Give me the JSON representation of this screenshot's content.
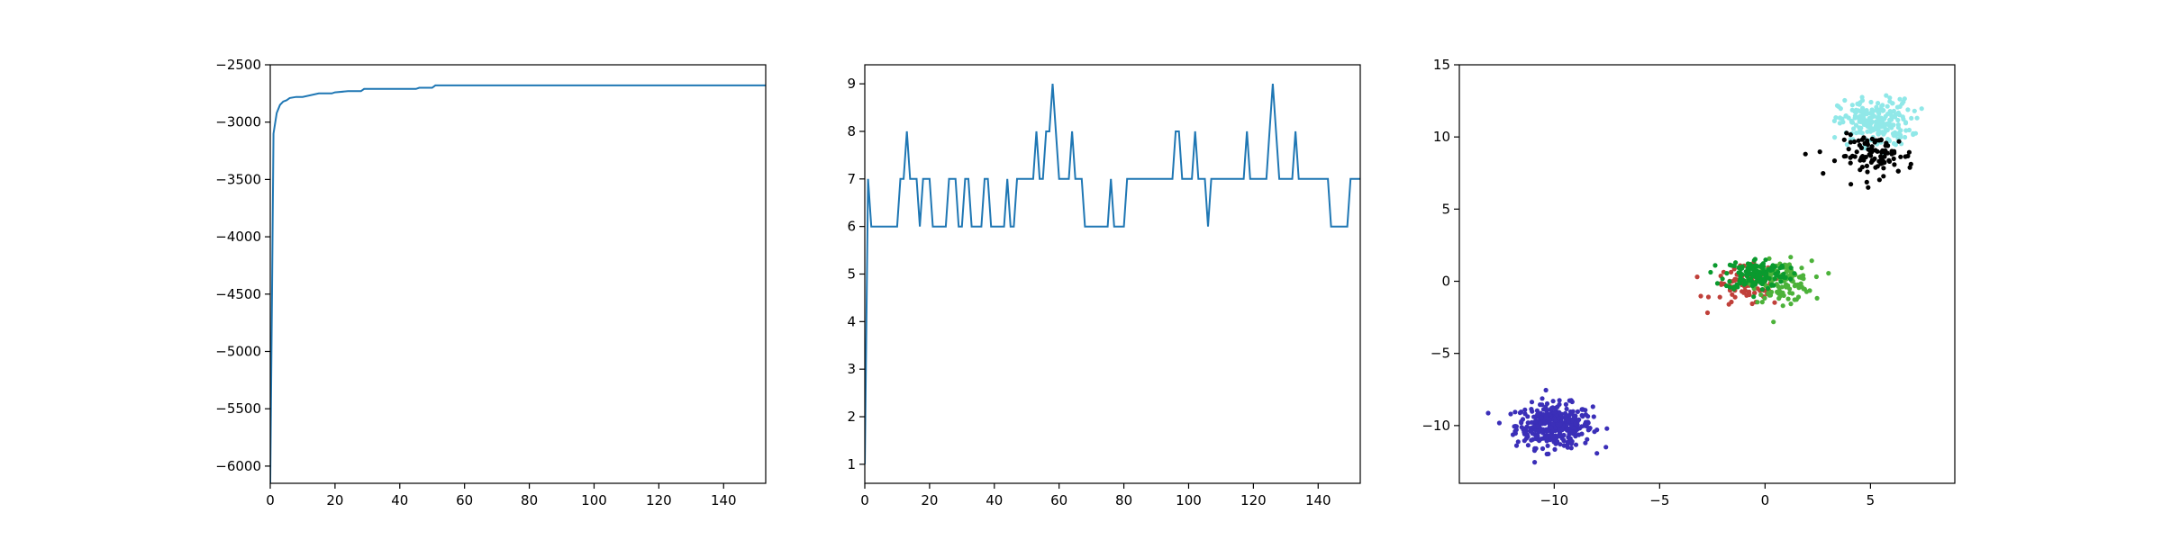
{
  "chart_data": [
    {
      "type": "line",
      "title": "",
      "xlabel": "",
      "ylabel": "",
      "xlim": [
        0,
        153
      ],
      "ylim": [
        -6150,
        -2500
      ],
      "xticks": [
        0,
        20,
        40,
        60,
        80,
        100,
        120,
        140
      ],
      "yticks": [
        -6000,
        -5500,
        -5000,
        -4500,
        -4000,
        -3500,
        -3000,
        -2500
      ],
      "grid": false,
      "series": [
        {
          "color": "#1f77b4",
          "x": [
            0,
            1,
            2,
            3,
            4,
            5,
            6,
            8,
            10,
            15,
            19,
            20,
            24,
            28,
            29,
            45,
            46,
            50,
            51,
            153
          ],
          "y": [
            -6150,
            -3100,
            -2920,
            -2850,
            -2820,
            -2810,
            -2790,
            -2780,
            -2780,
            -2750,
            -2750,
            -2740,
            -2730,
            -2730,
            -2710,
            -2710,
            -2700,
            -2700,
            -2680,
            -2680
          ]
        }
      ]
    },
    {
      "type": "line",
      "title": "",
      "xlabel": "",
      "ylabel": "",
      "xlim": [
        0,
        153
      ],
      "ylim": [
        0.6,
        9.4
      ],
      "xticks": [
        0,
        20,
        40,
        60,
        80,
        100,
        120,
        140
      ],
      "yticks": [
        1,
        2,
        3,
        4,
        5,
        6,
        7,
        8,
        9
      ],
      "grid": false,
      "series": [
        {
          "color": "#1f77b4",
          "x": [
            0,
            1,
            2,
            3,
            4,
            5,
            6,
            7,
            8,
            9,
            10,
            11,
            12,
            13,
            14,
            15,
            16,
            17,
            18,
            19,
            20,
            21,
            22,
            23,
            24,
            25,
            26,
            27,
            28,
            29,
            30,
            31,
            32,
            33,
            34,
            35,
            36,
            37,
            38,
            39,
            40,
            41,
            42,
            43,
            44,
            45,
            46,
            47,
            48,
            49,
            50,
            51,
            52,
            53,
            54,
            55,
            56,
            57,
            58,
            59,
            60,
            61,
            62,
            63,
            64,
            65,
            66,
            67,
            68,
            69,
            70,
            71,
            72,
            73,
            74,
            75,
            76,
            77,
            78,
            79,
            80,
            81,
            82,
            83,
            84,
            85,
            86,
            87,
            88,
            89,
            90,
            91,
            92,
            93,
            94,
            95,
            96,
            97,
            98,
            99,
            100,
            101,
            102,
            103,
            104,
            105,
            106,
            107,
            108,
            109,
            110,
            111,
            112,
            113,
            114,
            115,
            116,
            117,
            118,
            119,
            120,
            121,
            122,
            123,
            124,
            125,
            126,
            127,
            128,
            129,
            130,
            131,
            132,
            133,
            134,
            135,
            136,
            137,
            138,
            139,
            140,
            141,
            142,
            143,
            144,
            145,
            146,
            147,
            148,
            149,
            150,
            151,
            152,
            153
          ],
          "y": [
            1,
            7,
            6,
            6,
            6,
            6,
            6,
            6,
            6,
            6,
            6,
            7,
            7,
            8,
            7,
            7,
            7,
            6,
            7,
            7,
            7,
            6,
            6,
            6,
            6,
            6,
            7,
            7,
            7,
            6,
            6,
            7,
            7,
            6,
            6,
            6,
            6,
            7,
            7,
            6,
            6,
            6,
            6,
            6,
            7,
            6,
            6,
            7,
            7,
            7,
            7,
            7,
            7,
            8,
            7,
            7,
            8,
            8,
            9,
            8,
            7,
            7,
            7,
            7,
            8,
            7,
            7,
            7,
            6,
            6,
            6,
            6,
            6,
            6,
            6,
            6,
            7,
            6,
            6,
            6,
            6,
            7,
            7,
            7,
            7,
            7,
            7,
            7,
            7,
            7,
            7,
            7,
            7,
            7,
            7,
            7,
            8,
            8,
            7,
            7,
            7,
            7,
            8,
            7,
            7,
            7,
            6,
            7,
            7,
            7,
            7,
            7,
            7,
            7,
            7,
            7,
            7,
            7,
            8,
            7,
            7,
            7,
            7,
            7,
            7,
            8,
            9,
            8,
            7,
            7,
            7,
            7,
            7,
            8,
            7,
            7,
            7,
            7,
            7,
            7,
            7,
            7,
            7,
            7,
            6,
            6,
            6,
            6,
            6,
            6,
            7,
            7,
            7,
            7
          ]
        }
      ]
    },
    {
      "type": "scatter",
      "title": "",
      "xlabel": "",
      "ylabel": "",
      "xlim": [
        -14.5,
        9
      ],
      "ylim": [
        -14,
        15
      ],
      "xticks": [
        -10,
        -5,
        0,
        5
      ],
      "yticks": [
        -10,
        -5,
        0,
        5,
        10,
        15
      ],
      "grid": false,
      "series": [
        {
          "color": "#3b2fb8",
          "cx": -10,
          "cy": -10,
          "sx": 0.9,
          "sy": 0.75,
          "n": 380
        },
        {
          "color": "#c0403a",
          "cx": -0.8,
          "cy": -0.4,
          "sx": 0.85,
          "sy": 0.7,
          "n": 90
        },
        {
          "color": "#4cb23a",
          "cx": 0.8,
          "cy": 0,
          "sx": 0.7,
          "sy": 0.7,
          "n": 130
        },
        {
          "color": "#0a9a2e",
          "cx": -0.4,
          "cy": 0.5,
          "sx": 0.75,
          "sy": 0.55,
          "n": 150
        },
        {
          "color": "#90e8e8",
          "cx": 5.2,
          "cy": 11,
          "sx": 0.85,
          "sy": 0.8,
          "n": 230
        },
        {
          "color": "#000000",
          "cx": 5.3,
          "cy": 8.7,
          "sx": 0.9,
          "sy": 0.7,
          "n": 100
        }
      ]
    }
  ]
}
